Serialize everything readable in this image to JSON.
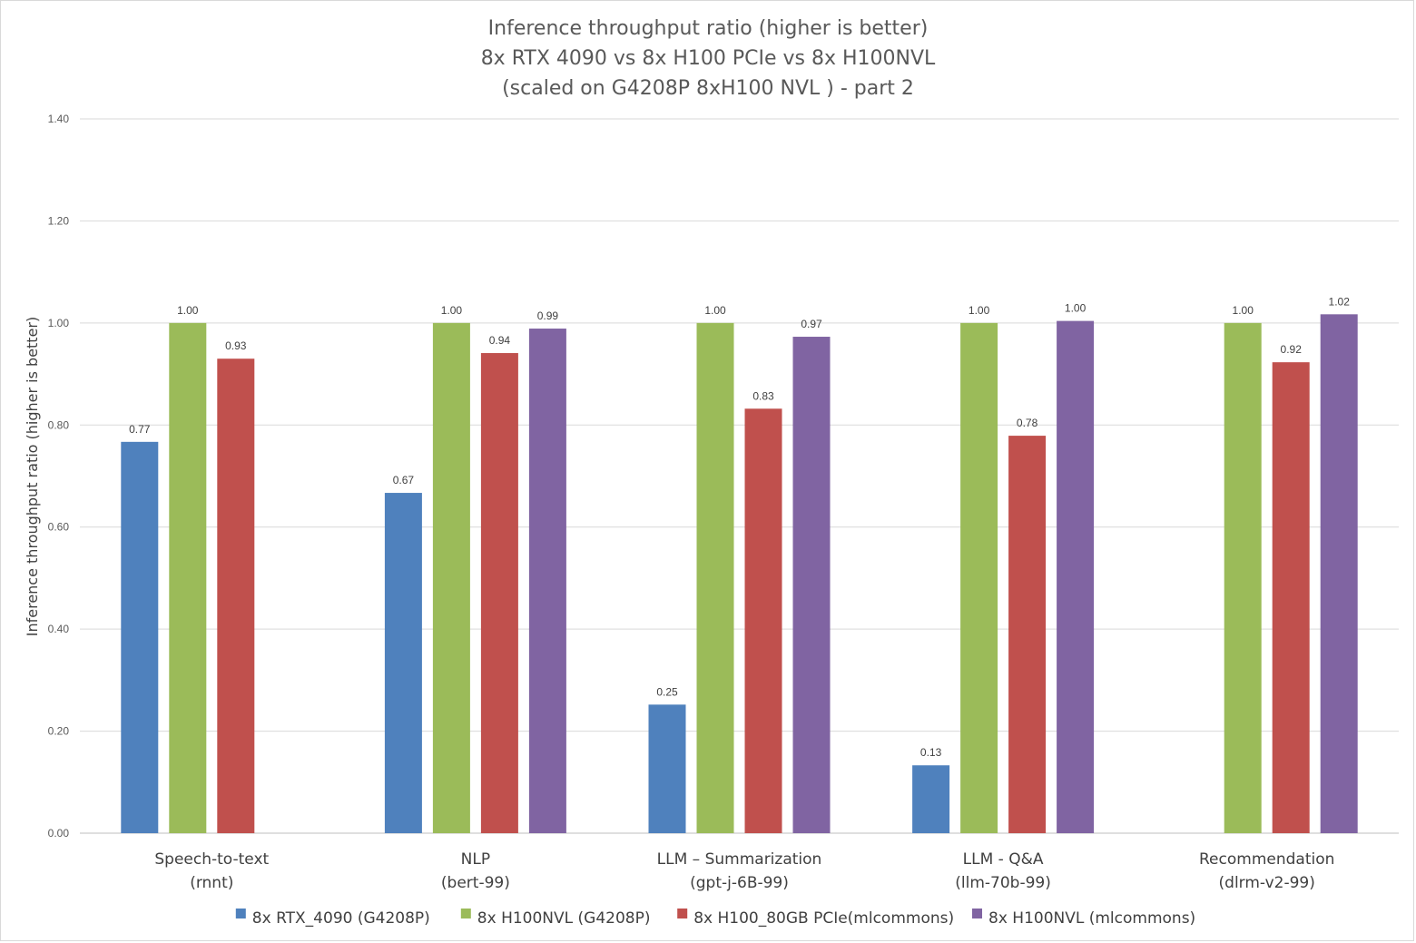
{
  "chart_data": {
    "type": "bar",
    "title": [
      "Inference throughput ratio (higher is better)",
      "8x RTX 4090 vs 8x H100 PCIe vs 8x H100NVL",
      "(scaled on G4208P 8xH100 NVL ) - part 2"
    ],
    "xlabel": "",
    "ylabel": "Inference throughput ratio (higher is better)",
    "ylim": [
      0,
      1.4
    ],
    "yticks": [
      "0.00",
      "0.20",
      "0.40",
      "0.60",
      "0.80",
      "1.00",
      "1.20",
      "1.40"
    ],
    "ytick_values": [
      0,
      0.2,
      0.4,
      0.6,
      0.8,
      1.0,
      1.2,
      1.4
    ],
    "grid": true,
    "legend_position": "bottom",
    "categories": [
      [
        "Speech-to-text",
        "(rnnt)"
      ],
      [
        "NLP",
        "(bert-99)"
      ],
      [
        "LLM – Summarization",
        "(gpt-j-6B-99)"
      ],
      [
        "LLM - Q&A",
        "(llm-70b-99)"
      ],
      [
        "Recommendation",
        "(dlrm-v2-99)"
      ]
    ],
    "series": [
      {
        "name": "8x RTX_4090 (G4208P)",
        "color": "#4f81bd",
        "values": [
          0.767,
          0.667,
          0.252,
          0.133,
          null
        ],
        "labels": [
          "0.77",
          "0.67",
          "0.25",
          "0.13",
          ""
        ]
      },
      {
        "name": "8x H100NVL (G4208P)",
        "color": "#9bbb59",
        "values": [
          1.0,
          1.0,
          1.0,
          1.0,
          1.0
        ],
        "labels": [
          "1.00",
          "1.00",
          "1.00",
          "1.00",
          "1.00"
        ]
      },
      {
        "name": "8x H100_80GB PCIe(mlcommons)",
        "color": "#c0504d",
        "values": [
          0.93,
          0.941,
          0.832,
          0.779,
          0.923
        ],
        "labels": [
          "0.93",
          "0.94",
          "0.83",
          "0.78",
          "0.92"
        ]
      },
      {
        "name": "8x H100NVL (mlcommons)",
        "color": "#8064a2",
        "values": [
          null,
          0.989,
          0.973,
          1.004,
          1.017
        ],
        "labels": [
          "",
          "0.99",
          "0.97",
          "1.00",
          "1.02"
        ]
      }
    ]
  }
}
